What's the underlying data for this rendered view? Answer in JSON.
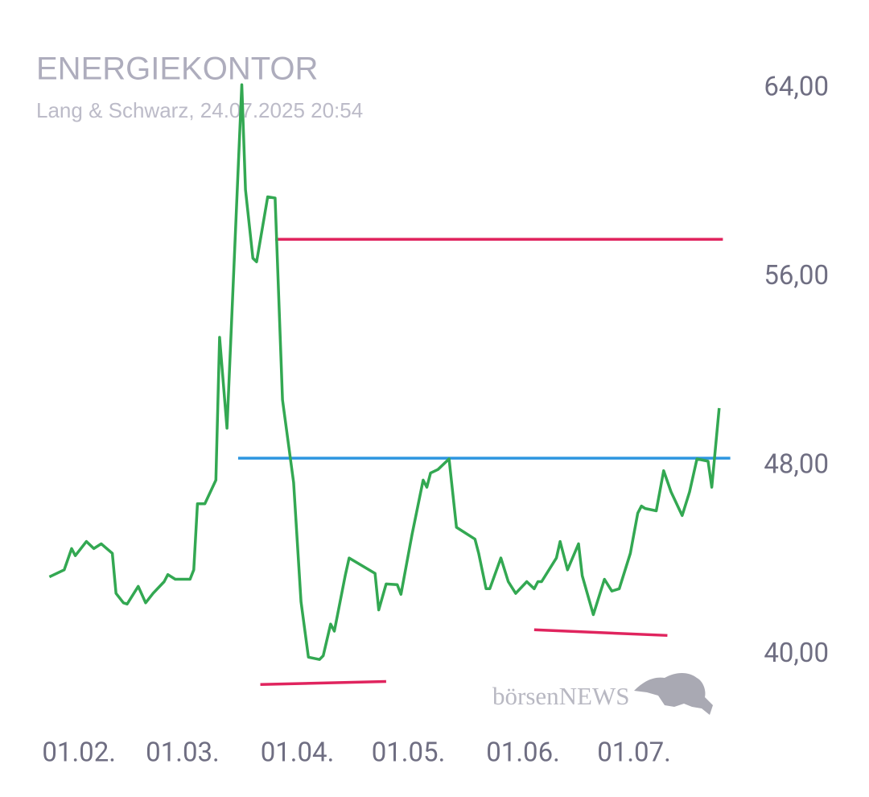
{
  "chart_data": {
    "type": "line",
    "title": "ENERGIEKONTOR",
    "subtitle": "Lang & Schwarz, 24.07.2025 20:54",
    "watermark": "börsenNEWS",
    "x": [
      "24.01.",
      "28.01.",
      "30.01.",
      "31.01.",
      "03.02.",
      "05.02.",
      "07.02.",
      "10.02.",
      "11.02.",
      "13.02.",
      "14.02.",
      "17.02.",
      "19.02.",
      "21.02.",
      "24.02.",
      "25.02.",
      "27.02.",
      "03.03.",
      "04.03.",
      "05.03.",
      "07.03.",
      "10.03.",
      "11.03.",
      "13.03.",
      "17.03.",
      "18.03.",
      "20.03.",
      "21.03.",
      "24.03.",
      "26.03.",
      "28.03.",
      "31.03.",
      "02.04.",
      "04.04.",
      "07.04.",
      "08.04.",
      "10.04.",
      "11.04.",
      "14.04.",
      "15.04.",
      "22.04.",
      "23.04.",
      "25.04.",
      "28.04.",
      "29.04.",
      "02.05.",
      "05.05.",
      "06.05.",
      "07.05.",
      "09.05.",
      "12.05.",
      "14.05.",
      "19.05.",
      "20.05.",
      "22.05.",
      "23.05.",
      "26.05.",
      "28.05.",
      "30.05.",
      "02.06.",
      "04.06.",
      "05.06.",
      "06.06.",
      "10.06.",
      "11.06.",
      "13.06.",
      "16.06.",
      "17.06.",
      "20.06.",
      "23.06.",
      "25.06.",
      "27.06.",
      "30.06.",
      "02.07.",
      "03.07.",
      "04.07.",
      "07.07.",
      "09.07.",
      "11.07.",
      "14.07.",
      "16.07.",
      "18.07.",
      "21.07.",
      "22.07.",
      "24.07."
    ],
    "series": [
      {
        "color": "#33a852",
        "values": [
          43.3,
          43.6,
          44.5,
          44.2,
          44.8,
          44.5,
          44.7,
          44.3,
          42.6,
          42.2,
          42.15,
          42.9,
          42.2,
          42.6,
          43.1,
          43.4,
          43.2,
          43.2,
          43.6,
          46.4,
          46.4,
          47.4,
          53.45,
          49.6,
          64.15,
          59.7,
          56.8,
          56.65,
          59.4,
          59.35,
          50.8,
          47.3,
          42.25,
          39.9,
          39.8,
          39.96,
          41.3,
          41.0,
          43.4,
          44.1,
          43.45,
          41.9,
          43.0,
          42.97,
          42.56,
          45.1,
          47.4,
          47.1,
          47.7,
          47.85,
          48.3,
          45.4,
          44.9,
          44.3,
          42.8,
          42.8,
          44.1,
          43.1,
          42.6,
          43.1,
          42.8,
          43.1,
          43.1,
          44.1,
          44.8,
          43.6,
          44.7,
          43.35,
          41.7,
          43.2,
          42.7,
          42.8,
          44.3,
          46.0,
          46.3,
          46.2,
          46.1,
          47.8,
          46.9,
          45.9,
          46.9,
          48.3,
          48.2,
          47.1,
          50.45
        ]
      }
    ],
    "trendlines": [
      {
        "color": "#e0245e",
        "x": [
          "26.03.",
          "25.07."
        ],
        "values": [
          57.6,
          57.6
        ]
      },
      {
        "color": "#2d96e0",
        "x": [
          "16.03.",
          "27.07."
        ],
        "values": [
          48.33,
          48.33
        ]
      },
      {
        "color": "#e0245e",
        "x": [
          "22.03.",
          "25.04."
        ],
        "values": [
          38.74,
          38.87
        ]
      },
      {
        "color": "#e0245e",
        "x": [
          "04.06.",
          "10.07."
        ],
        "values": [
          41.06,
          40.82
        ]
      }
    ],
    "xlim": [
      "20.01.",
      "31.07."
    ],
    "xticks": [
      "01.02.",
      "01.03.",
      "01.04.",
      "01.05.",
      "01.06.",
      "01.07."
    ],
    "ylim": [
      38,
      66
    ],
    "yticks": [
      {
        "value": 40,
        "label": "40,00"
      },
      {
        "value": 48,
        "label": "48,00"
      },
      {
        "value": 56,
        "label": "56,00"
      },
      {
        "value": 64,
        "label": "64,00"
      }
    ],
    "grid": false
  }
}
